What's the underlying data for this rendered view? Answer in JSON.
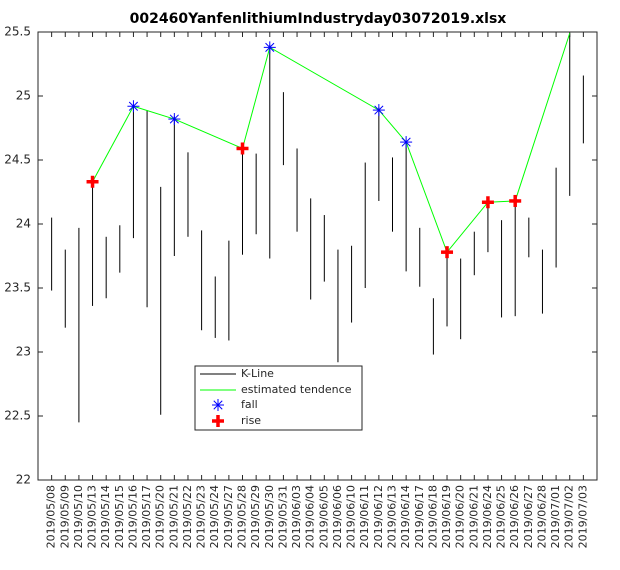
{
  "chart_data": {
    "type": "kline",
    "title": "002460YanfenlithiumIndustryday03072019.xlsx",
    "categories": [
      "2019/05/08",
      "2019/05/09",
      "2019/05/10",
      "2019/05/13",
      "2019/05/14",
      "2019/05/15",
      "2019/05/16",
      "2019/05/17",
      "2019/05/20",
      "2019/05/21",
      "2019/05/22",
      "2019/05/23",
      "2019/05/24",
      "2019/05/27",
      "2019/05/28",
      "2019/05/29",
      "2019/05/30",
      "2019/05/31",
      "2019/06/03",
      "2019/06/04",
      "2019/06/05",
      "2019/06/06",
      "2019/06/10",
      "2019/06/11",
      "2019/06/12",
      "2019/06/13",
      "2019/06/14",
      "2019/06/17",
      "2019/06/18",
      "2019/06/19",
      "2019/06/20",
      "2019/06/21",
      "2019/06/24",
      "2019/06/25",
      "2019/06/26",
      "2019/06/27",
      "2019/06/28",
      "2019/07/01",
      "2019/07/02",
      "2019/07/03"
    ],
    "kline": {
      "name": "K-Line",
      "color": "#000000",
      "low": [
        23.48,
        23.19,
        22.45,
        23.36,
        23.42,
        23.62,
        23.89,
        23.35,
        22.51,
        23.75,
        23.9,
        23.17,
        23.11,
        23.09,
        23.76,
        23.92,
        23.73,
        24.46,
        23.94,
        23.41,
        23.55,
        22.92,
        23.23,
        23.5,
        24.18,
        23.94,
        23.63,
        23.51,
        22.98,
        23.2,
        23.1,
        23.6,
        23.78,
        23.27,
        23.28,
        23.74,
        23.3,
        23.66,
        24.22,
        24.63
      ],
      "high": [
        24.05,
        23.8,
        23.97,
        24.32,
        23.9,
        23.99,
        24.93,
        24.89,
        24.29,
        24.84,
        24.56,
        23.95,
        23.59,
        23.87,
        24.59,
        24.55,
        25.4,
        25.03,
        24.59,
        24.2,
        24.07,
        23.8,
        23.83,
        24.48,
        24.91,
        24.52,
        24.64,
        23.97,
        23.42,
        23.78,
        23.73,
        23.94,
        24.17,
        24.03,
        24.19,
        24.05,
        23.8,
        24.44,
        25.49,
        25.16
      ]
    },
    "tendence": {
      "name": "estimated tendence",
      "color": "#00ff00",
      "x": [
        "2019/05/13",
        "2019/05/16",
        "2019/05/21",
        "2019/05/28",
        "2019/05/30",
        "2019/06/12",
        "2019/06/14",
        "2019/06/19",
        "2019/06/24",
        "2019/06/26",
        "2019/07/02"
      ],
      "values": [
        24.33,
        24.92,
        24.82,
        24.59,
        25.38,
        24.89,
        24.64,
        23.78,
        24.17,
        24.18,
        25.49
      ]
    },
    "fall": {
      "name": "fall",
      "color": "#0000ff",
      "x": [
        "2019/05/16",
        "2019/05/21",
        "2019/05/30",
        "2019/06/12",
        "2019/06/14"
      ],
      "values": [
        24.92,
        24.82,
        25.38,
        24.89,
        24.64
      ]
    },
    "rise": {
      "name": "rise",
      "color": "#ff0000",
      "x": [
        "2019/05/13",
        "2019/05/28",
        "2019/06/19",
        "2019/06/24",
        "2019/06/26"
      ],
      "values": [
        24.33,
        24.59,
        23.78,
        24.17,
        24.18
      ]
    },
    "ylim": [
      22,
      25.5
    ],
    "yticks": [
      22,
      22.5,
      23,
      23.5,
      24,
      24.5,
      25,
      25.5
    ]
  }
}
